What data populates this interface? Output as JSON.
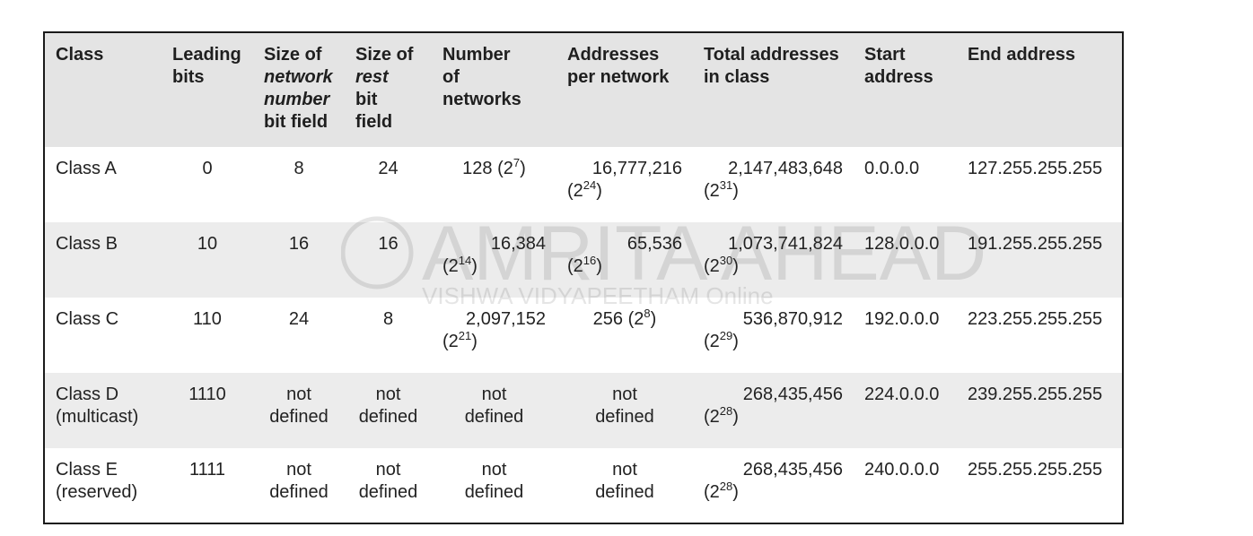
{
  "table": {
    "headers": [
      {
        "key": "class",
        "parts": [
          {
            "t": "Class"
          }
        ]
      },
      {
        "key": "leading_bits",
        "parts": [
          {
            "t": "Leading\nbits"
          }
        ]
      },
      {
        "key": "network_field",
        "parts": [
          {
            "t": "Size of\n"
          },
          {
            "t": "network\nnumber",
            "em": true
          },
          {
            "t": "\nbit field"
          }
        ]
      },
      {
        "key": "rest_field",
        "parts": [
          {
            "t": "Size of\n"
          },
          {
            "t": "rest",
            "em": true
          },
          {
            "t": "\nbit\nfield"
          }
        ]
      },
      {
        "key": "networks",
        "parts": [
          {
            "t": "Number\nof\nnetworks"
          }
        ]
      },
      {
        "key": "addr_per_net",
        "parts": [
          {
            "t": "Addresses\nper network"
          }
        ]
      },
      {
        "key": "total_addr",
        "parts": [
          {
            "t": "Total addresses\nin class"
          }
        ]
      },
      {
        "key": "start",
        "parts": [
          {
            "t": "Start\naddress"
          }
        ]
      },
      {
        "key": "end",
        "parts": [
          {
            "t": "End address"
          }
        ]
      }
    ],
    "rows": [
      {
        "class": "Class A",
        "leading_bits": "0",
        "network_field": "8",
        "rest_field": "24",
        "networks": {
          "value": "128",
          "exp": "7",
          "inline": true
        },
        "addr_per_net": {
          "value": "16,777,216",
          "exp": "24"
        },
        "total_addr": {
          "value": "2,147,483,648",
          "exp": "31"
        },
        "start": "0.0.0.0",
        "end": "127.255.255.255"
      },
      {
        "class": "Class B",
        "leading_bits": "10",
        "network_field": "16",
        "rest_field": "16",
        "networks": {
          "value": "16,384",
          "exp": "14"
        },
        "addr_per_net": {
          "value": "65,536",
          "exp": "16"
        },
        "total_addr": {
          "value": "1,073,741,824",
          "exp": "30"
        },
        "start": "128.0.0.0",
        "end": "191.255.255.255"
      },
      {
        "class": "Class C",
        "leading_bits": "110",
        "network_field": "24",
        "rest_field": "8",
        "networks": {
          "value": "2,097,152",
          "exp": "21"
        },
        "addr_per_net": {
          "value": "256",
          "exp": "8",
          "inline": true
        },
        "total_addr": {
          "value": "536,870,912",
          "exp": "29"
        },
        "start": "192.0.0.0",
        "end": "223.255.255.255"
      },
      {
        "class": "Class D\n(multicast)",
        "leading_bits": "1110",
        "network_field": "not\ndefined",
        "rest_field": "not\ndefined",
        "networks": {
          "text": "not\ndefined"
        },
        "addr_per_net": {
          "text": "not\ndefined"
        },
        "total_addr": {
          "value": "268,435,456",
          "exp": "28"
        },
        "start": "224.0.0.0",
        "end": "239.255.255.255"
      },
      {
        "class": "Class E\n(reserved)",
        "leading_bits": "1111",
        "network_field": "not\ndefined",
        "rest_field": "not\ndefined",
        "networks": {
          "text": "not\ndefined"
        },
        "addr_per_net": {
          "text": "not\ndefined"
        },
        "total_addr": {
          "value": "268,435,456",
          "exp": "28"
        },
        "start": "240.0.0.0",
        "end": "255.255.255.255"
      }
    ]
  },
  "watermark": {
    "brand": "AMRITA AHEAD",
    "sub": "VISHWA VIDYAPEETHAM  Online"
  }
}
